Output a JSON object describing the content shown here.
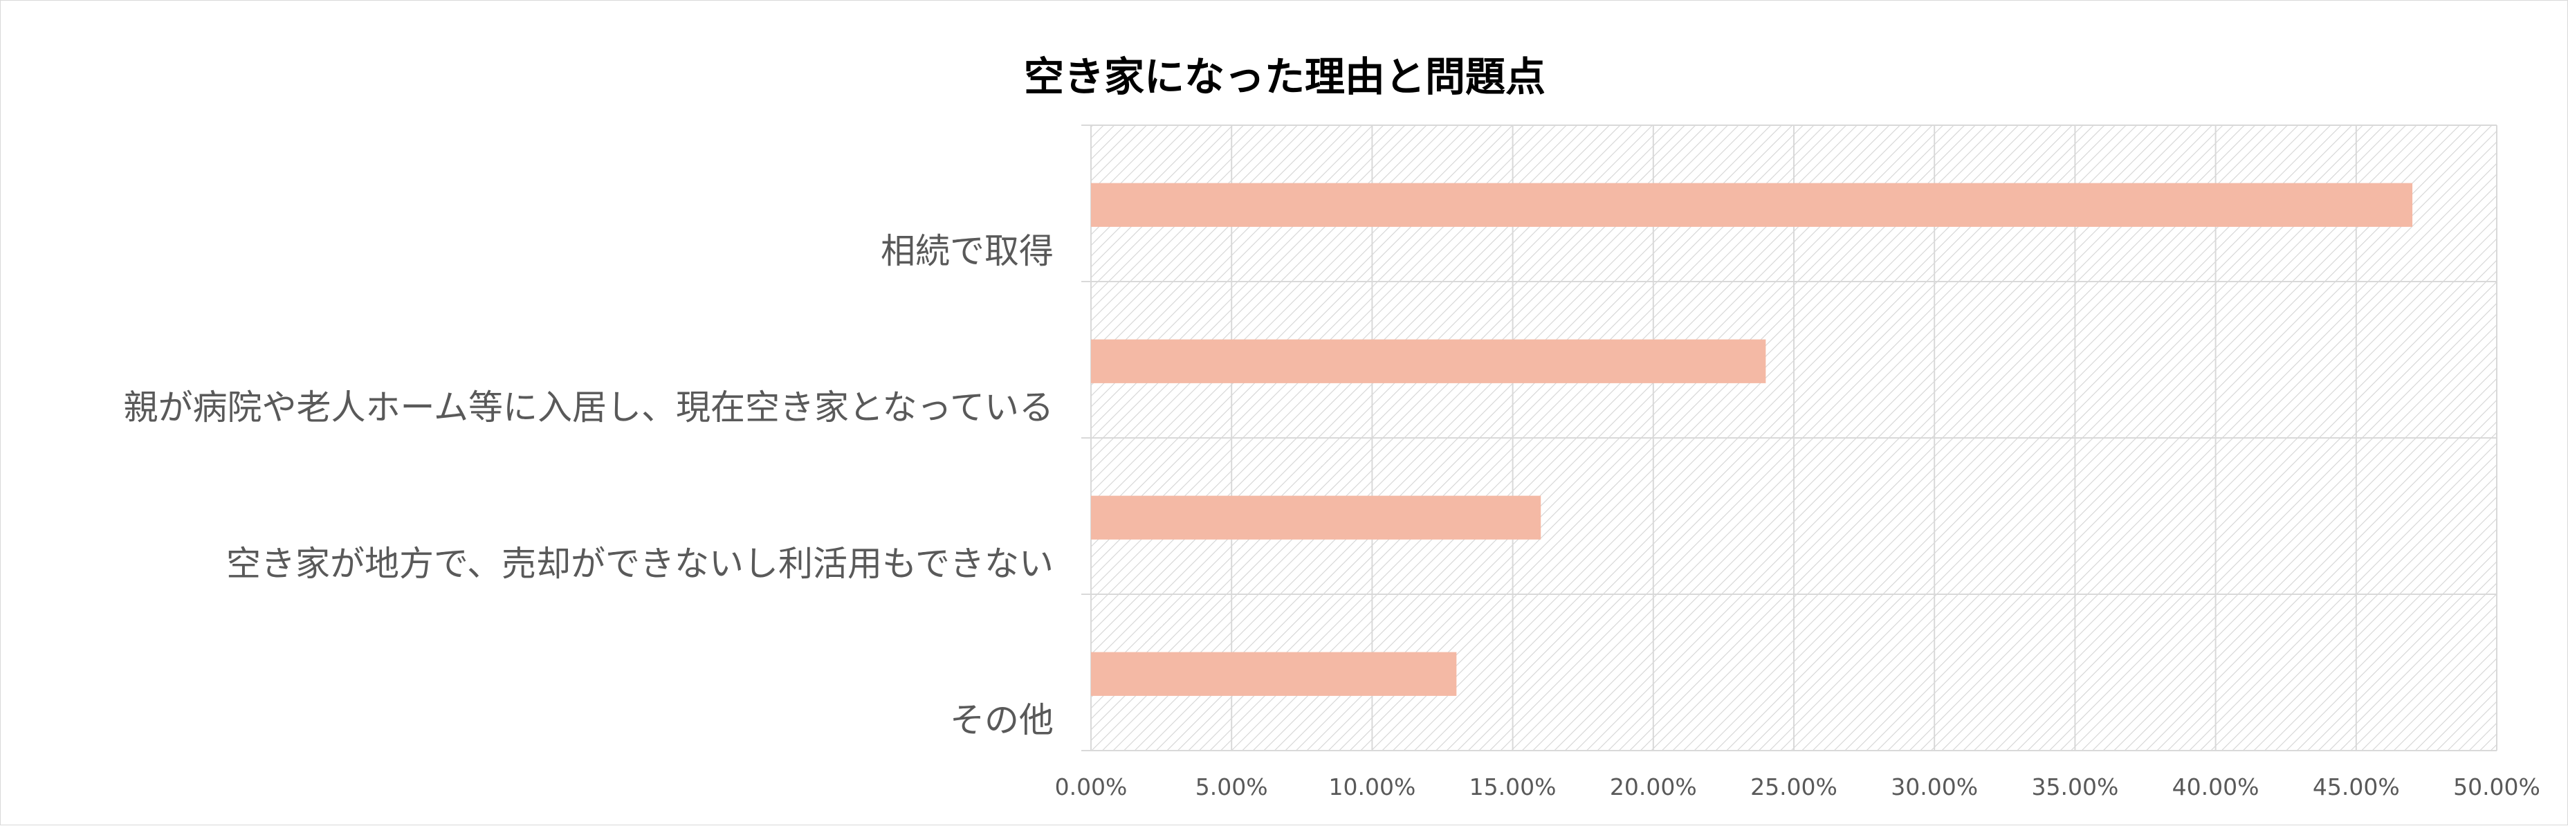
{
  "chart_data": {
    "type": "bar",
    "orientation": "horizontal",
    "title": "空き家になった理由と問題点",
    "xlabel": "",
    "ylabel": "",
    "categories": [
      "相続で取得",
      "親が病院や老人ホーム等に入居し、現在空き家となっている",
      "空き家が地方で、売却ができないし利活用もできない",
      "その他"
    ],
    "values": [
      0.47,
      0.24,
      0.16,
      0.13
    ],
    "xlim": [
      0,
      0.5
    ],
    "x_ticks": [
      0,
      0.05,
      0.1,
      0.15,
      0.2,
      0.25,
      0.3,
      0.35,
      0.4,
      0.45,
      0.5
    ],
    "x_tick_labels": [
      "0.00%",
      "5.00%",
      "10.00%",
      "15.00%",
      "20.00%",
      "25.00%",
      "30.00%",
      "35.00%",
      "40.00%",
      "45.00%",
      "50.00%"
    ],
    "grid": true,
    "legend": "none",
    "plot_background": "light-gray diagonal hatch",
    "colors": {
      "bar": "#f4b9a5",
      "grid": "#d9d9d9",
      "hatch": "#d4d4d4",
      "title": "#000000",
      "label": "#595959"
    }
  }
}
